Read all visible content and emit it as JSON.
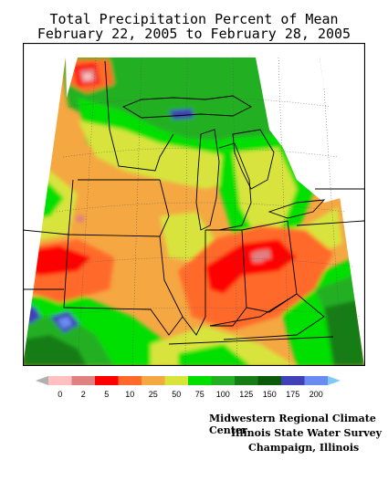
{
  "title_line1": "Total Precipitation Percent of Mean",
  "title_line2": "February 22, 2005 to February 28, 2005",
  "legend": {
    "ticks": [
      "0",
      "2",
      "5",
      "10",
      "25",
      "50",
      "75",
      "100",
      "125",
      "150",
      "175",
      "200"
    ],
    "colors": [
      "#b0b0b0",
      "#ffc0c0",
      "#e08080",
      "#ff0000",
      "#ff6a2a",
      "#f5a742",
      "#d8e43c",
      "#00e000",
      "#22b022",
      "#167d16",
      "#0a5a0a",
      "#4040b8",
      "#6a8cf0",
      "#80c8f8"
    ]
  },
  "credits": {
    "line1": "Midwestern Regional Climate Center",
    "line2": "Illinois State Water Survey",
    "line3": "Champaign, Illinois"
  }
}
